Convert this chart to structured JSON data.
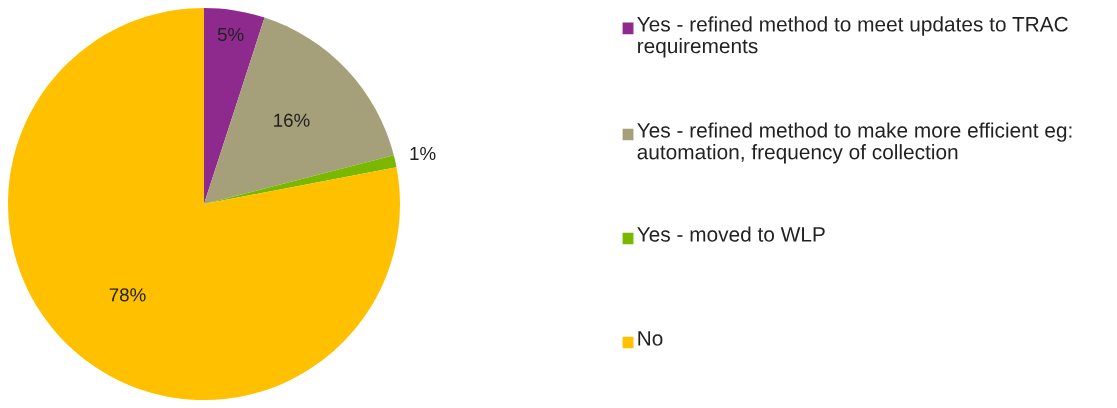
{
  "chart_data": {
    "type": "pie",
    "categories": [
      "Yes - refined method to meet updates to TRAC requirements",
      "Yes - refined method to make more efficient eg: automation, frequency of collection",
      "Yes - moved to WLP",
      "No"
    ],
    "values": [
      5,
      16,
      1,
      78
    ],
    "colors": [
      "#8e2a8e",
      "#a6a07a",
      "#7ab800",
      "#ffc000"
    ],
    "value_labels": [
      "5%",
      "16%",
      "1%",
      "78%"
    ],
    "legend": "right"
  }
}
